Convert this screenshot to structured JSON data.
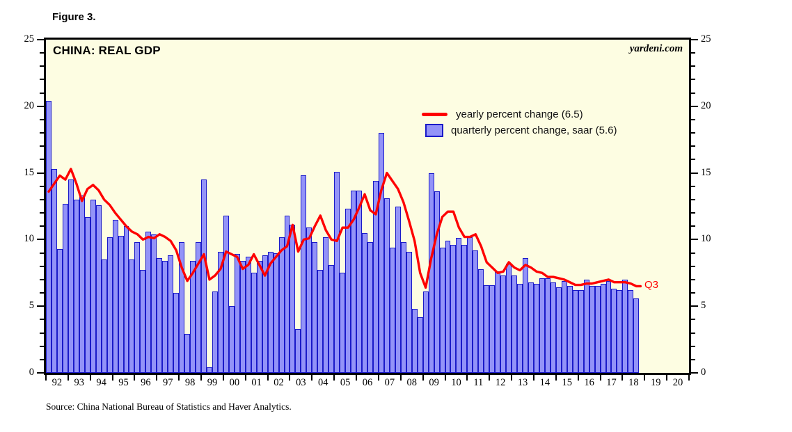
{
  "figure_label": "Figure 3.",
  "watermark": "yardeni.com",
  "source": "Source: China National Bureau of Statistics and Haver Analytics.",
  "end_label": "Q3",
  "legend": {
    "line_label": "yearly percent change (6.5)",
    "bar_label": "quarterly percent change, saar (5.6)"
  },
  "colors": {
    "plot_bg": "#fdfde2",
    "bar_fill": "#9393f8",
    "bar_border": "#1a1ac8",
    "line": "#fe0000",
    "frame": "#000000"
  },
  "chart_data": {
    "type": "bar",
    "title": "CHINA: REAL GDP",
    "x_unit": "quarter",
    "x_start": "1992Q1",
    "x_end": "2018Q3",
    "x_axis_years": [
      "92",
      "93",
      "94",
      "95",
      "96",
      "97",
      "98",
      "99",
      "00",
      "01",
      "02",
      "03",
      "04",
      "05",
      "06",
      "07",
      "08",
      "09",
      "10",
      "11",
      "12",
      "13",
      "14",
      "15",
      "16",
      "17",
      "18",
      "19",
      "20"
    ],
    "ylim": [
      0,
      25
    ],
    "yticks": [
      0,
      5,
      10,
      15,
      20,
      25
    ],
    "y_minor_step": 1,
    "grid": false,
    "legend_position": "upper-middle",
    "series": [
      {
        "name": "yearly percent change",
        "type": "line",
        "color": "#fe0000",
        "latest_value": 6.5,
        "latest_label": "Q3",
        "values": [
          13.6,
          14.2,
          14.8,
          14.5,
          15.3,
          14.2,
          12.9,
          13.8,
          14.1,
          13.7,
          13.0,
          12.6,
          12.0,
          11.5,
          11.0,
          10.6,
          10.4,
          10.0,
          10.2,
          10.1,
          10.4,
          10.2,
          9.9,
          9.2,
          7.9,
          6.9,
          7.5,
          8.2,
          8.9,
          7.0,
          7.3,
          7.8,
          9.1,
          8.9,
          8.7,
          7.8,
          8.1,
          8.9,
          8.1,
          7.3,
          8.2,
          8.7,
          9.2,
          9.5,
          11.1,
          9.1,
          10.0,
          10.1,
          11.0,
          11.8,
          10.7,
          10.0,
          9.9,
          10.9,
          10.9,
          11.5,
          12.4,
          13.4,
          12.2,
          11.9,
          13.7,
          15.0,
          14.4,
          13.8,
          12.8,
          11.4,
          9.9,
          7.5,
          6.4,
          8.6,
          10.4,
          11.7,
          12.1,
          12.1,
          10.9,
          10.2,
          10.2,
          10.4,
          9.5,
          8.3,
          7.9,
          7.5,
          7.6,
          8.3,
          7.9,
          7.7,
          8.1,
          7.9,
          7.6,
          7.5,
          7.2,
          7.2,
          7.1,
          7.0,
          6.8,
          6.6,
          6.6,
          6.7,
          6.7,
          6.8,
          6.9,
          7.0,
          6.8,
          6.8,
          6.8,
          6.7,
          6.5
        ]
      },
      {
        "name": "quarterly percent change, saar",
        "type": "bar",
        "color": "#9393f8",
        "border_color": "#1a1ac8",
        "latest_value": 5.6,
        "values": [
          20.4,
          15.3,
          9.3,
          12.7,
          14.5,
          13.0,
          13.3,
          11.7,
          13.0,
          12.6,
          8.5,
          10.2,
          11.5,
          10.3,
          11.0,
          8.5,
          9.8,
          7.7,
          10.6,
          10.4,
          8.6,
          8.4,
          8.8,
          6.0,
          9.8,
          2.9,
          8.4,
          9.8,
          14.5,
          0.4,
          6.1,
          9.1,
          11.8,
          5.0,
          8.9,
          8.4,
          8.7,
          7.5,
          8.4,
          8.8,
          9.1,
          9.0,
          10.2,
          11.8,
          11.1,
          3.3,
          14.8,
          10.9,
          9.8,
          7.7,
          10.2,
          8.1,
          15.1,
          7.5,
          12.3,
          13.7,
          13.7,
          10.5,
          9.8,
          14.4,
          18.0,
          13.1,
          9.4,
          12.5,
          9.8,
          9.1,
          4.8,
          4.2,
          6.1,
          15.0,
          13.6,
          9.4,
          9.9,
          9.6,
          10.1,
          9.6,
          10.2,
          9.2,
          7.8,
          6.6,
          6.6,
          7.6,
          7.3,
          8.2,
          7.3,
          6.7,
          8.6,
          6.8,
          6.7,
          7.1,
          7.1,
          6.8,
          6.4,
          6.9,
          6.5,
          6.2,
          6.2,
          7.0,
          6.5,
          6.5,
          6.7,
          6.9,
          6.3,
          6.2,
          7.0,
          6.2,
          5.6
        ]
      }
    ]
  }
}
